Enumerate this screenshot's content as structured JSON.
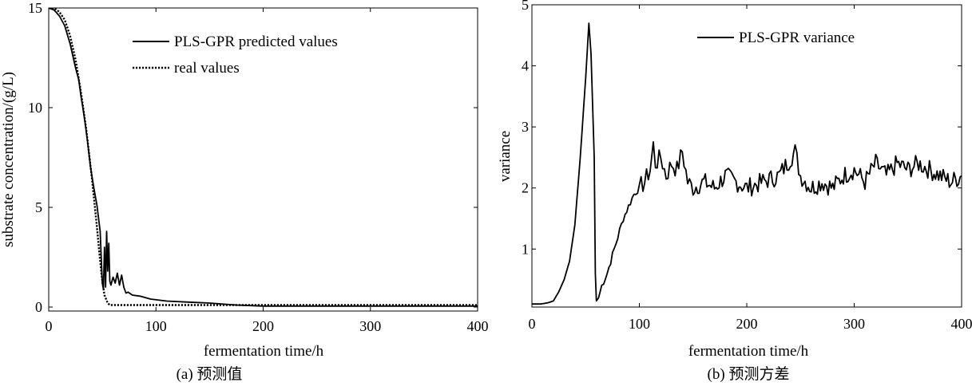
{
  "chart_data": [
    {
      "type": "line",
      "caption": "(a) 预测值",
      "xlabel": "fermentation time/h",
      "ylabel": "substrate concentration/(g/L)",
      "xlim": [
        0,
        400
      ],
      "ylim": [
        -0.2,
        15
      ],
      "xticks": [
        0,
        100,
        200,
        300,
        400
      ],
      "yticks": [
        0,
        5,
        10,
        15
      ],
      "grid": false,
      "legend_position": "top-right",
      "series": [
        {
          "name": "PLS-GPR predicted values",
          "style": "solid",
          "x": [
            0,
            5,
            10,
            15,
            20,
            25,
            28,
            30,
            33,
            36,
            39,
            42,
            45,
            48,
            50,
            51,
            52,
            53,
            54,
            55,
            56,
            57,
            58,
            60,
            62,
            64,
            66,
            68,
            70,
            72,
            74,
            78,
            85,
            95,
            110,
            130,
            150,
            175,
            200,
            250,
            300,
            350,
            400
          ],
          "y": [
            15.0,
            14.9,
            14.6,
            14.1,
            13.2,
            12.0,
            11.4,
            10.6,
            9.6,
            8.4,
            7.0,
            6.0,
            5.1,
            3.8,
            1.2,
            0.9,
            3.0,
            1.0,
            3.8,
            1.8,
            3.2,
            1.3,
            1.1,
            1.5,
            1.2,
            1.7,
            1.1,
            1.6,
            1.0,
            0.7,
            0.75,
            0.6,
            0.55,
            0.4,
            0.3,
            0.25,
            0.2,
            0.1,
            0.05,
            0.05,
            0.05,
            0.05,
            0.05
          ]
        },
        {
          "name": "real values",
          "style": "dotted",
          "x": [
            0,
            5,
            10,
            15,
            20,
            25,
            30,
            35,
            40,
            45,
            48,
            50,
            52,
            55,
            57,
            60,
            100,
            200,
            300,
            400
          ],
          "y": [
            15.0,
            15.0,
            14.8,
            14.4,
            13.6,
            12.4,
            10.8,
            8.9,
            6.6,
            4.0,
            2.3,
            1.3,
            0.6,
            0.2,
            0.1,
            0.1,
            0.1,
            0.1,
            0.1,
            0.1
          ]
        }
      ]
    },
    {
      "type": "line",
      "caption": "(b) 预测方差",
      "xlabel": "fermentation time/h",
      "ylabel": "variance",
      "xlim": [
        0,
        400
      ],
      "ylim": [
        0.05,
        5
      ],
      "xticks": [
        0,
        100,
        200,
        300,
        400
      ],
      "yticks": [
        1,
        2,
        3,
        4,
        5
      ],
      "grid": false,
      "legend_position": "top-center",
      "series": [
        {
          "name": "PLS-GPR variance",
          "style": "solid",
          "x": [
            0,
            8,
            15,
            20,
            25,
            30,
            35,
            40,
            45,
            50,
            53,
            55,
            58,
            59,
            60,
            62,
            65,
            70,
            75,
            80,
            85,
            90,
            95,
            100,
            105,
            110,
            113,
            115,
            120,
            125,
            130,
            135,
            140,
            145,
            150,
            160,
            170,
            180,
            190,
            200,
            215,
            230,
            245,
            250,
            260,
            270,
            280,
            290,
            300,
            310,
            320,
            330,
            340,
            350,
            360,
            370,
            380,
            390,
            400
          ],
          "y": [
            0.1,
            0.1,
            0.12,
            0.15,
            0.3,
            0.5,
            0.8,
            1.4,
            2.5,
            3.8,
            4.7,
            4.2,
            2.5,
            0.6,
            0.15,
            0.2,
            0.4,
            0.6,
            0.9,
            1.2,
            1.5,
            1.7,
            1.9,
            2.0,
            2.1,
            2.3,
            2.7,
            2.4,
            2.5,
            2.2,
            2.4,
            2.3,
            2.6,
            2.1,
            2.0,
            2.1,
            2.0,
            2.2,
            2.1,
            2.0,
            2.1,
            2.2,
            2.6,
            2.2,
            2.0,
            2.1,
            2.0,
            2.2,
            2.3,
            2.1,
            2.4,
            2.2,
            2.4,
            2.3,
            2.4,
            2.3,
            2.2,
            2.1,
            2.2
          ]
        }
      ]
    }
  ]
}
